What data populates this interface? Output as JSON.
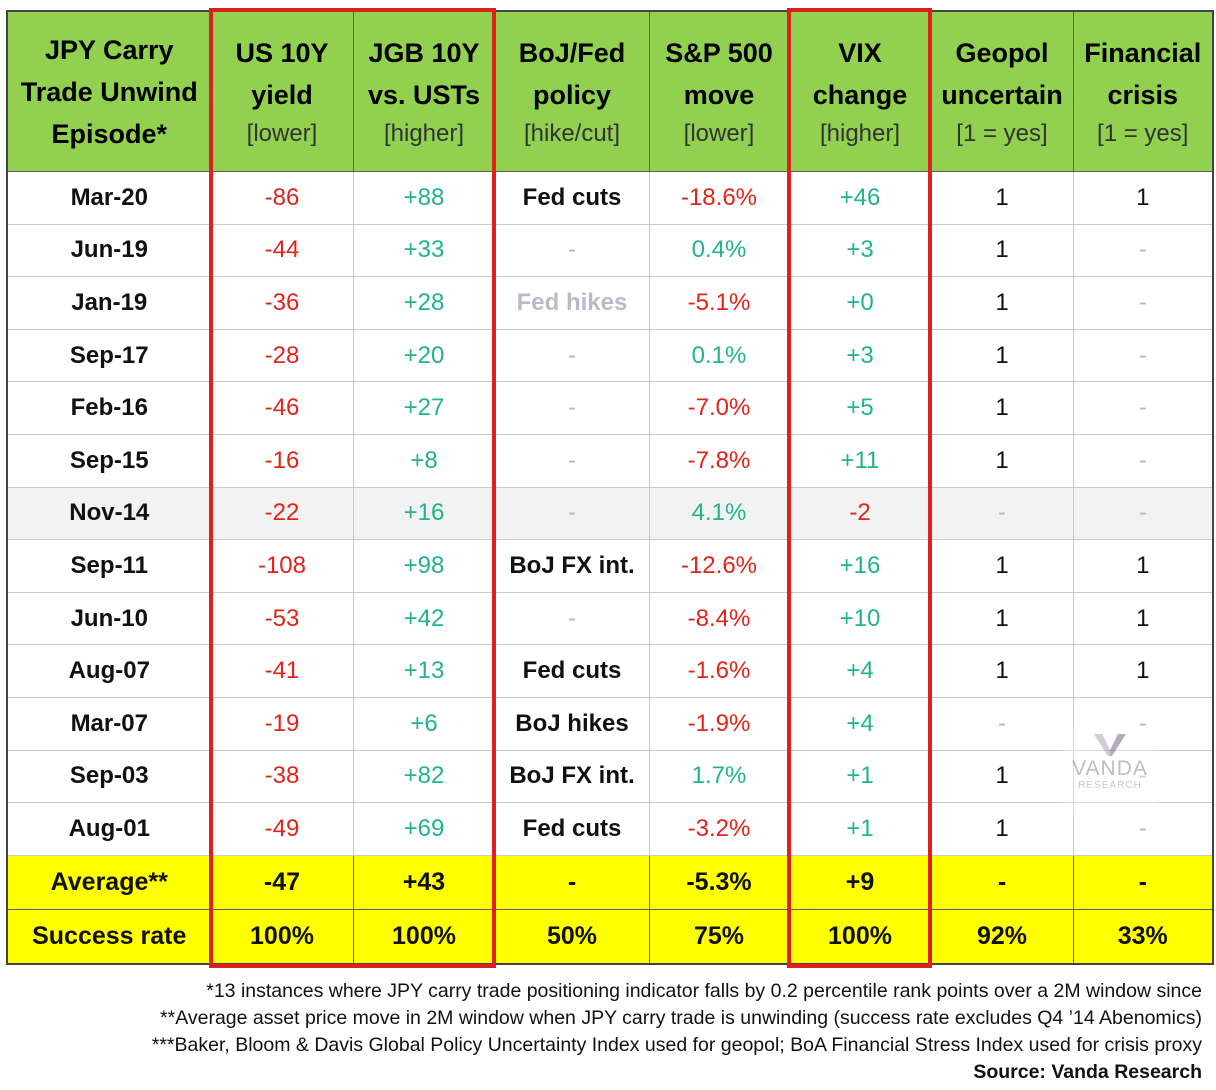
{
  "header": {
    "col0": [
      "JPY Carry",
      "Trade Unwind",
      "Episode*"
    ],
    "cols": [
      {
        "l1": "US 10Y",
        "l2": "yield",
        "sub": "[lower]"
      },
      {
        "l1": "JGB 10Y",
        "l2": "vs. USTs",
        "sub": "[higher]"
      },
      {
        "l1": "BoJ/Fed",
        "l2": "policy",
        "sub": "[hike/cut]"
      },
      {
        "l1": "S&P 500",
        "l2": "move",
        "sub": "[lower]"
      },
      {
        "l1": "VIX",
        "l2": "change",
        "sub": "[higher]"
      },
      {
        "l1": "Geopol",
        "l2": "uncertain",
        "sub": "[1 = yes]"
      },
      {
        "l1": "Financial",
        "l2": "crisis",
        "sub": "[1 = yes]"
      }
    ]
  },
  "rows": [
    {
      "label": "Mar-20",
      "us10y": "-86",
      "jgb": "+88",
      "policy": "Fed cuts",
      "spx": "-18.6%",
      "vix": "+46",
      "geopol": "1",
      "crisis": "1"
    },
    {
      "label": "Jun-19",
      "us10y": "-44",
      "jgb": "+33",
      "policy": "-",
      "spx": "0.4%",
      "vix": "+3",
      "geopol": "1",
      "crisis": "-"
    },
    {
      "label": "Jan-19",
      "us10y": "-36",
      "jgb": "+28",
      "policy": "Fed hikes",
      "spx": "-5.1%",
      "vix": "+0",
      "geopol": "1",
      "crisis": "-"
    },
    {
      "label": "Sep-17",
      "us10y": "-28",
      "jgb": "+20",
      "policy": "-",
      "spx": "0.1%",
      "vix": "+3",
      "geopol": "1",
      "crisis": "-"
    },
    {
      "label": "Feb-16",
      "us10y": "-46",
      "jgb": "+27",
      "policy": "-",
      "spx": "-7.0%",
      "vix": "+5",
      "geopol": "1",
      "crisis": "-"
    },
    {
      "label": "Sep-15",
      "us10y": "-16",
      "jgb": "+8",
      "policy": "-",
      "spx": "-7.8%",
      "vix": "+11",
      "geopol": "1",
      "crisis": "-"
    },
    {
      "label": "Nov-14",
      "us10y": "-22",
      "jgb": "+16",
      "policy": "-",
      "spx": "4.1%",
      "vix": "-2",
      "geopol": "-",
      "crisis": "-"
    },
    {
      "label": "Sep-11",
      "us10y": "-108",
      "jgb": "+98",
      "policy": "BoJ FX int.",
      "spx": "-12.6%",
      "vix": "+16",
      "geopol": "1",
      "crisis": "1"
    },
    {
      "label": "Jun-10",
      "us10y": "-53",
      "jgb": "+42",
      "policy": "-",
      "spx": "-8.4%",
      "vix": "+10",
      "geopol": "1",
      "crisis": "1"
    },
    {
      "label": "Aug-07",
      "us10y": "-41",
      "jgb": "+13",
      "policy": "Fed cuts",
      "spx": "-1.6%",
      "vix": "+4",
      "geopol": "1",
      "crisis": "1"
    },
    {
      "label": "Mar-07",
      "us10y": "-19",
      "jgb": "+6",
      "policy": "BoJ hikes",
      "spx": "-1.9%",
      "vix": "+4",
      "geopol": "-",
      "crisis": "-"
    },
    {
      "label": "Sep-03",
      "us10y": "-38",
      "jgb": "+82",
      "policy": "BoJ FX int.",
      "spx": "1.7%",
      "vix": "+1",
      "geopol": "1",
      "crisis": "-"
    },
    {
      "label": "Aug-01",
      "us10y": "-49",
      "jgb": "+69",
      "policy": "Fed cuts",
      "spx": "-3.2%",
      "vix": "+1",
      "geopol": "1",
      "crisis": "-"
    }
  ],
  "footer": [
    {
      "label": "Average**",
      "us10y": "-47",
      "jgb": "+43",
      "policy": "-",
      "spx": "-5.3%",
      "vix": "+9",
      "geopol": "-",
      "crisis": "-"
    },
    {
      "label": "Success rate",
      "us10y": "100%",
      "jgb": "100%",
      "policy": "50%",
      "spx": "75%",
      "vix": "100%",
      "geopol": "92%",
      "crisis": "33%"
    }
  ],
  "notes": [
    "*13 instances where JPY carry trade positioning indicator falls by 0.2 percentile rank points over a 2M window since",
    "**Average asset price move in 2M window when JPY carry trade is unwinding (success rate excludes Q4 ’14 Abenomics)",
    "***Baker, Bloom & Davis Global Policy Uncertainty Index used for geopol; BoA Financial Stress Index used for crisis proxy"
  ],
  "source": "Source: Vanda Research",
  "watermark": {
    "name": "VANDA",
    "sub": "RESEARCH"
  },
  "colors": {
    "header_bg": "#92d050",
    "footer_bg": "#ffff00",
    "negative": "#e2231a",
    "positive": "#21b38f",
    "highlight_border": "#e0201c"
  }
}
